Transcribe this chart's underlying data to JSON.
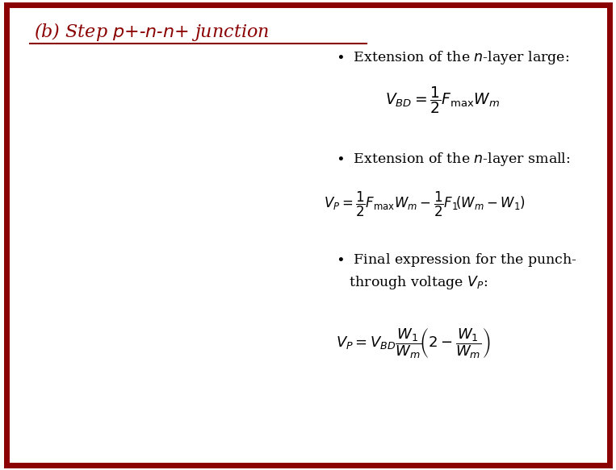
{
  "title_color": "#8B0000",
  "border_color": "#8B0000",
  "bg_color": "#FFFFFF",
  "orange_dark": "#F0A830",
  "orange_light": "#FAD880",
  "red_line": "#CC0033",
  "text_color": "#000000",
  "figsize": [
    7.63,
    5.83
  ],
  "dpi": 100
}
